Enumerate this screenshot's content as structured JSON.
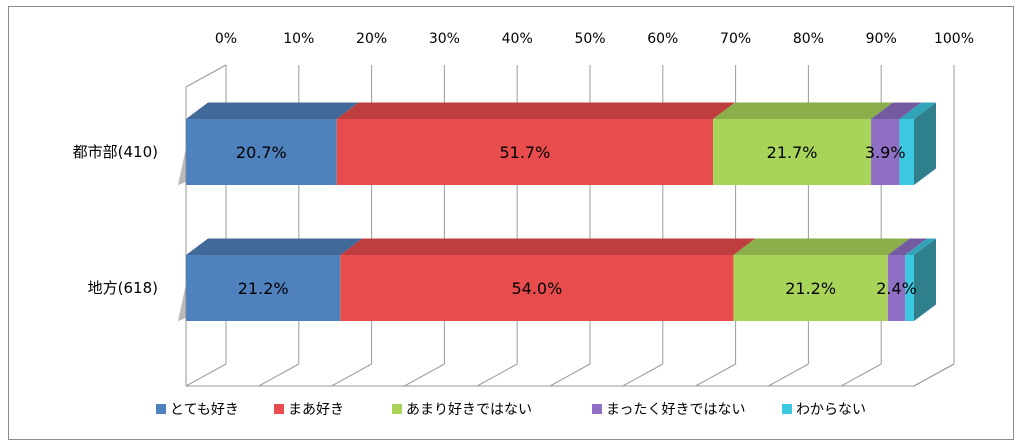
{
  "chart_data": {
    "type": "bar",
    "orientation": "horizontal",
    "stacked": "percent",
    "three_d": true,
    "categories": [
      "都市部(410)",
      "地方(618)"
    ],
    "series": [
      {
        "name": "とても好き",
        "color": "#4f81bd",
        "values": [
          20.7,
          21.2
        ],
        "labels": [
          "20.7%",
          "21.2%"
        ]
      },
      {
        "name": "まあ好き",
        "color": "#e84c4c",
        "values": [
          51.7,
          54.0
        ],
        "labels": [
          "51.7%",
          "54.0%"
        ]
      },
      {
        "name": "あまり好きではない",
        "color": "#a8d45a",
        "values": [
          21.7,
          21.2
        ],
        "labels": [
          "21.7%",
          "21.2%"
        ]
      },
      {
        "name": "まったく好きではない",
        "color": "#8e6fc4",
        "values": [
          3.9,
          2.4
        ],
        "labels": [
          "3.9%",
          "2.4%"
        ]
      },
      {
        "name": "わからない",
        "color": "#3cc8e0",
        "values": [
          2.0,
          1.2
        ],
        "labels": [
          "",
          ""
        ]
      }
    ],
    "xlim": [
      0,
      100
    ],
    "xticks": [
      "0%",
      "10%",
      "20%",
      "30%",
      "40%",
      "50%",
      "60%",
      "70%",
      "80%",
      "90%",
      "100%"
    ],
    "grid": true,
    "legend": "bottom"
  }
}
